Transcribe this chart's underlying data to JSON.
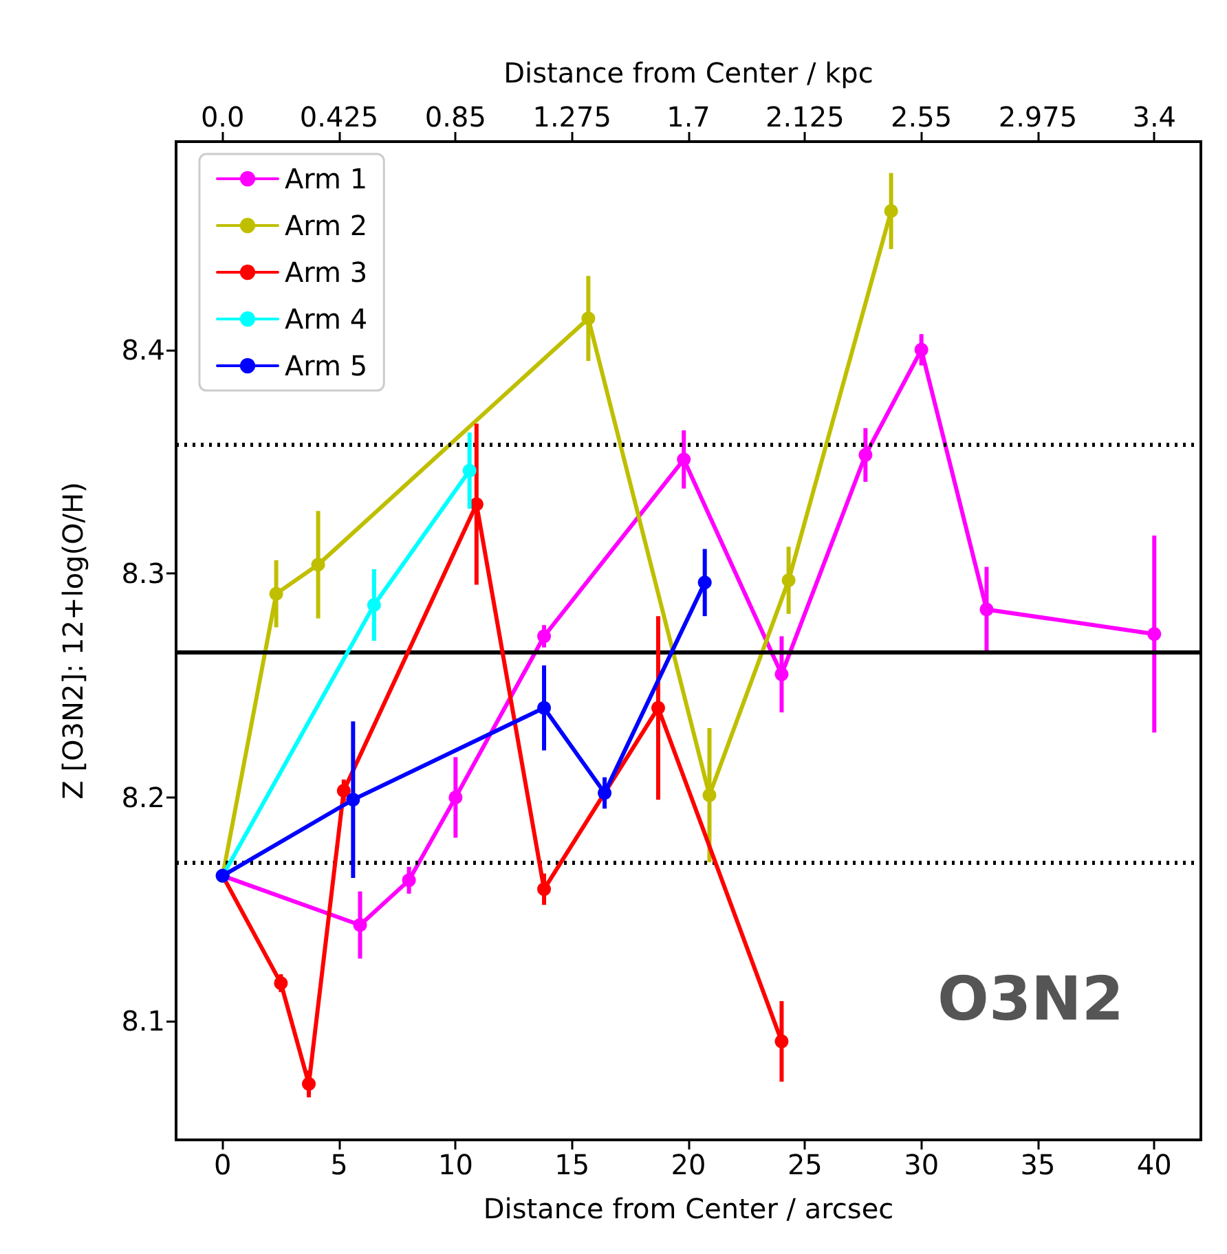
{
  "chart_data": {
    "type": "line",
    "xlabel": "Distance from Center / arcsec",
    "ylabel": "Z [O3N2]: 12+log(O/H)",
    "x2label": "Distance from Center / kpc",
    "annotations": [
      "O3N2"
    ],
    "xlim": [
      -2,
      42
    ],
    "xticks": [
      0,
      5,
      10,
      15,
      20,
      25,
      30,
      35,
      40
    ],
    "x2lim": [
      -0.17,
      3.57
    ],
    "x2ticks": [
      {
        "value": 0,
        "label": "0.0"
      },
      0.425,
      0.85,
      1.275,
      1.7,
      2.125,
      2.55,
      2.975,
      3.4
    ],
    "ylim": [
      8.047,
      8.493
    ],
    "yticks": [
      8.1,
      8.2,
      8.3,
      8.4
    ],
    "grid": false,
    "legend": "top left",
    "marker": "circle",
    "line_style": "solid",
    "ref_lines": [
      {
        "axis": "y",
        "value": 8.265,
        "color": "#000000",
        "line_style": "solid"
      },
      {
        "axis": "y",
        "value": 8.358,
        "color": "#000000",
        "line_style": "dotted"
      },
      {
        "axis": "y",
        "value": 8.171,
        "color": "#000000",
        "line_style": "dotted"
      }
    ],
    "series": [
      {
        "name": "Arm 1",
        "color": "#ff00ff",
        "x": [
          0,
          5.9,
          8.0,
          10.0,
          13.8,
          19.8,
          24.0,
          27.6,
          30.0,
          32.8,
          40.0
        ],
        "values": [
          8.165,
          8.143,
          8.163,
          8.2,
          8.272,
          8.351,
          8.255,
          8.353,
          8.4,
          8.284,
          8.273
        ],
        "errors": [
          null,
          0.015,
          0.006,
          0.018,
          0.005,
          0.013,
          0.017,
          0.012,
          0.007,
          0.019,
          0.044
        ]
      },
      {
        "name": "Arm 2",
        "color": "#bfbf00",
        "x": [
          0,
          2.3,
          4.1,
          15.7,
          20.9,
          24.3,
          28.7
        ],
        "values": [
          8.165,
          8.291,
          8.304,
          8.414,
          8.201,
          8.297,
          8.462
        ],
        "errors": [
          null,
          0.015,
          0.024,
          0.019,
          0.03,
          0.015,
          0.017
        ]
      },
      {
        "name": "Arm 3",
        "color": "#ff0000",
        "x": [
          0,
          2.5,
          3.7,
          5.2,
          10.9,
          13.8,
          18.7,
          24.0
        ],
        "values": [
          8.165,
          8.117,
          8.072,
          8.203,
          8.331,
          8.159,
          8.24,
          8.091
        ],
        "errors": [
          null,
          0.004,
          0.006,
          0.005,
          0.036,
          0.007,
          0.041,
          0.018
        ]
      },
      {
        "name": "Arm 4",
        "color": "#00ffff",
        "x": [
          0,
          6.5,
          10.6
        ],
        "values": [
          8.165,
          8.286,
          8.346
        ],
        "errors": [
          null,
          0.016,
          0.017
        ]
      },
      {
        "name": "Arm 5",
        "color": "#0000ff",
        "x": [
          0,
          5.6,
          13.8,
          16.4,
          20.7
        ],
        "values": [
          8.165,
          8.199,
          8.24,
          8.202,
          8.296
        ],
        "errors": [
          null,
          0.035,
          0.019,
          0.007,
          0.015
        ]
      }
    ]
  }
}
